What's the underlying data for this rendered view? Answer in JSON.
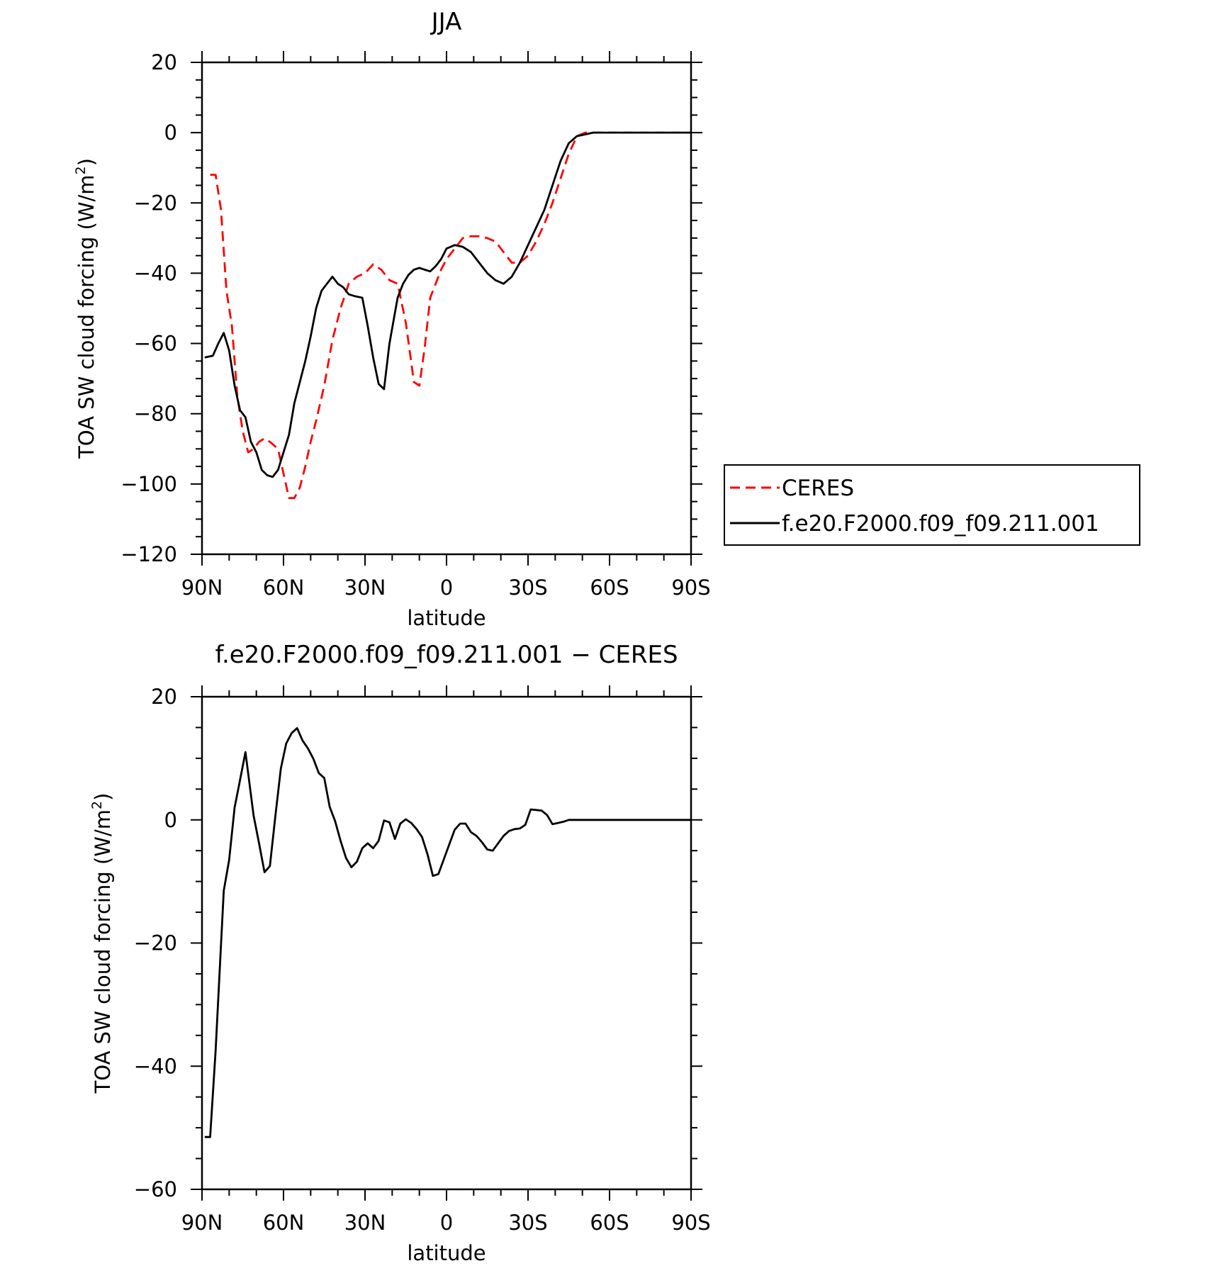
{
  "chart_data": [
    {
      "type": "line",
      "title": "JJA",
      "xlabel": "latitude",
      "ylabel": "TOA SW cloud forcing (W/m",
      "ylabel_superscript": "2",
      "ylabel_suffix": ")",
      "xlim": [
        90,
        -90
      ],
      "ylim": [
        -120,
        20
      ],
      "x_ticks": [
        90,
        60,
        30,
        0,
        -30,
        -60,
        -90
      ],
      "x_tick_labels": [
        "90N",
        "60N",
        "30N",
        "0",
        "30S",
        "60S",
        "90S"
      ],
      "y_ticks": [
        20,
        0,
        -20,
        -40,
        -60,
        -80,
        -100,
        -120
      ],
      "y_tick_labels": [
        "20",
        "0",
        "−20",
        "−40",
        "−60",
        "−80",
        "−100",
        "−120"
      ],
      "legend_position": "right",
      "legend": [
        "CERES",
        "f.e20.F2000.f09_f09.211.001"
      ],
      "series": [
        {
          "name": "CERES",
          "color": "#ff0000",
          "dash": "dashed",
          "x": [
            87,
            85,
            83,
            81,
            79,
            77,
            75,
            73,
            71,
            69,
            67,
            65,
            62,
            60,
            58,
            56,
            54,
            52,
            50,
            48,
            45,
            42,
            39,
            36,
            33,
            30,
            27,
            24,
            21,
            18,
            15,
            12,
            10,
            8,
            6,
            4,
            2,
            0,
            -3,
            -6,
            -9,
            -12,
            -15,
            -18,
            -21,
            -24,
            -27,
            -30,
            -33,
            -36,
            -39,
            -42,
            -45,
            -48,
            -51,
            -54,
            -57,
            -60,
            -63,
            -66,
            -69,
            -72,
            -75,
            -78,
            -81,
            -84,
            -87,
            -90
          ],
          "y": [
            -12,
            -12,
            -22,
            -45,
            -55,
            -75,
            -85,
            -91,
            -90,
            -88,
            -87,
            -88,
            -90,
            -97,
            -104,
            -104,
            -101,
            -95,
            -88,
            -82,
            -72,
            -59,
            -50,
            -43,
            -41,
            -40,
            -37.5,
            -39,
            -42,
            -43,
            -54,
            -71,
            -72,
            -61,
            -47,
            -43,
            -39,
            -36,
            -33,
            -30,
            -29.5,
            -29.5,
            -30,
            -31,
            -34,
            -37,
            -37,
            -35,
            -31,
            -26,
            -20,
            -13,
            -6,
            -1,
            0,
            0,
            0,
            0,
            0,
            0,
            0,
            0,
            0,
            0,
            0,
            0,
            0,
            0
          ]
        },
        {
          "name": "f.e20.F2000.f09_f09.211.001",
          "color": "#000000",
          "dash": "solid",
          "x": [
            89,
            86,
            84,
            82,
            80,
            78,
            76,
            74,
            72,
            70,
            68,
            66,
            64,
            62,
            60,
            58,
            56,
            54,
            52,
            50,
            48,
            46,
            44,
            42,
            40,
            38,
            36,
            34,
            31,
            29,
            27,
            25,
            23,
            21,
            18,
            16,
            14,
            12,
            10,
            8,
            6,
            4,
            2,
            0,
            -3,
            -6,
            -9,
            -12,
            -15,
            -18,
            -21,
            -24,
            -27,
            -30,
            -33,
            -36,
            -39,
            -42,
            -45,
            -48,
            -51,
            -54,
            -57,
            -60,
            -63,
            -65,
            -68,
            -72,
            -75,
            -78,
            -82,
            -86,
            -90
          ],
          "y": [
            -64,
            -63.5,
            -60,
            -57,
            -62,
            -72,
            -79,
            -81,
            -88,
            -91,
            -96,
            -97.5,
            -98,
            -96,
            -91,
            -86,
            -77,
            -71,
            -65,
            -58,
            -50,
            -45,
            -43,
            -41,
            -43,
            -44,
            -46,
            -46.5,
            -47,
            -55,
            -64,
            -71.5,
            -73,
            -60,
            -47,
            -43,
            -40.5,
            -39,
            -38.5,
            -39,
            -39.5,
            -38,
            -36,
            -33,
            -32,
            -32.5,
            -34,
            -37,
            -40,
            -42,
            -43,
            -41,
            -37,
            -32,
            -27,
            -22,
            -15,
            -8,
            -3,
            -1,
            -0.5,
            0,
            0,
            0,
            0,
            0,
            0,
            0,
            0,
            0,
            0,
            0,
            0
          ]
        }
      ]
    },
    {
      "type": "line",
      "title": "f.e20.F2000.f09_f09.211.001 − CERES",
      "xlabel": "latitude",
      "ylabel": "TOA SW cloud forcing (W/m",
      "ylabel_superscript": "2",
      "ylabel_suffix": ")",
      "xlim": [
        90,
        -90
      ],
      "ylim": [
        -60,
        20
      ],
      "x_ticks": [
        90,
        60,
        30,
        0,
        -30,
        -60,
        -90
      ],
      "x_tick_labels": [
        "90N",
        "60N",
        "30N",
        "0",
        "30S",
        "60S",
        "90S"
      ],
      "y_ticks": [
        20,
        0,
        -20,
        -40,
        -60
      ],
      "y_tick_labels": [
        "20",
        "0",
        "−20",
        "−40",
        "−60"
      ],
      "series": [
        {
          "color": "#000000",
          "dash": "solid",
          "x": [
            89,
            87,
            85,
            82,
            80,
            78,
            76,
            74,
            71,
            69,
            67,
            65,
            63,
            61,
            59,
            57,
            55,
            53,
            51,
            49,
            47,
            45,
            43,
            41,
            39,
            37,
            35,
            33,
            31,
            29,
            27,
            25,
            23,
            21,
            19,
            17,
            15,
            13,
            11,
            9,
            7,
            5,
            3,
            1,
            -1,
            -3,
            -5,
            -7,
            -9,
            -11,
            -13,
            -15,
            -17,
            -19,
            -21,
            -23,
            -25,
            -27,
            -29,
            -31,
            -33,
            -35,
            -37,
            -39,
            -41,
            -43,
            -45,
            -47,
            -49,
            -51,
            -53,
            -55,
            -57,
            -59,
            -61,
            -63,
            -65,
            -67,
            -69,
            -72,
            -75,
            -78,
            -81,
            -84,
            -87,
            -90
          ],
          "y": [
            -51.5,
            -51.5,
            -37.5,
            -11.5,
            -6.5,
            2,
            6.5,
            11,
            0.7,
            -3.8,
            -8.5,
            -7.5,
            0.6,
            8.3,
            12.4,
            14.1,
            14.9,
            12.9,
            11.6,
            9.9,
            7.6,
            6.8,
            2.1,
            -0.2,
            -3.4,
            -6.2,
            -7.7,
            -6.8,
            -4.6,
            -3.8,
            -4.6,
            -3.4,
            -0.1,
            -0.4,
            -3.1,
            -0.6,
            0.1,
            -0.5,
            -1.5,
            -2.8,
            -5.6,
            -9.1,
            -8.8,
            -6.4,
            -4,
            -1.6,
            -0.6,
            -0.6,
            -2,
            -2.6,
            -3.6,
            -4.8,
            -5,
            -3.8,
            -2.6,
            -1.8,
            -1.5,
            -1.4,
            -0.8,
            1.7,
            1.6,
            1.5,
            0.8,
            -0.7,
            -0.5,
            -0.3,
            0,
            0,
            0,
            0,
            0,
            0,
            0,
            0,
            0,
            0,
            0,
            0,
            0,
            0,
            0,
            0,
            0,
            0,
            0,
            0
          ]
        }
      ]
    }
  ]
}
